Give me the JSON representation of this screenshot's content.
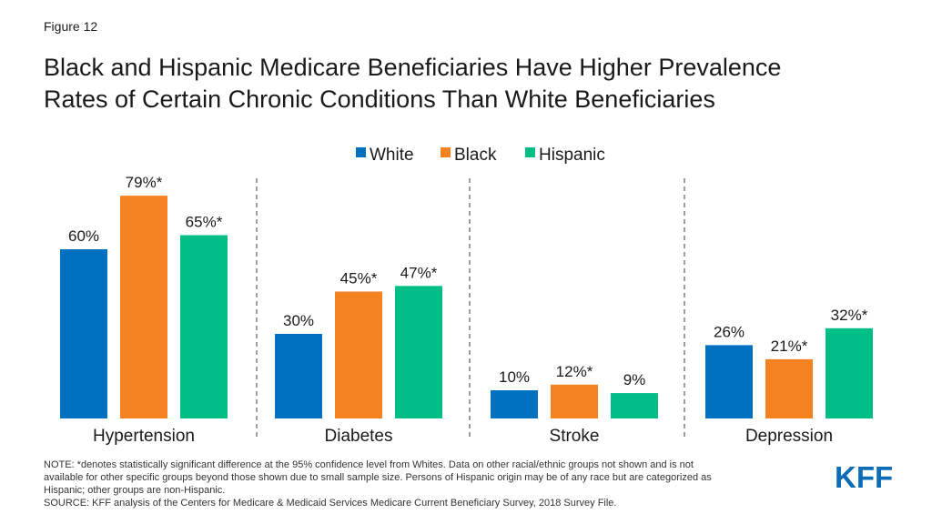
{
  "figure_label": "Figure 12",
  "title_lines": [
    "Black and Hispanic Medicare Beneficiaries Have Higher Prevalence",
    "Rates of Certain Chronic Conditions Than White Beneficiaries"
  ],
  "colors": {
    "White": "#0070c0",
    "Black": "#f58220",
    "Hispanic": "#00be85",
    "divider": "#7f7f7f",
    "logo": "#0d6cb6"
  },
  "chart_data": {
    "type": "bar",
    "categories": [
      "Hypertension",
      "Diabetes",
      "Stroke",
      "Depression"
    ],
    "legend_position": "top-center",
    "grid": false,
    "ylim": [
      0,
      85
    ],
    "series": [
      {
        "name": "White",
        "values": [
          60,
          30,
          10,
          26
        ],
        "labels": [
          "60%",
          "30%",
          "10%",
          "26%"
        ]
      },
      {
        "name": "Black",
        "values": [
          79,
          45,
          12,
          21
        ],
        "labels": [
          "79%*",
          "45%*",
          "12%*",
          "21%*"
        ]
      },
      {
        "name": "Hispanic",
        "values": [
          65,
          47,
          9,
          32
        ],
        "labels": [
          "65%*",
          "47%*",
          "9%",
          "32%*"
        ]
      }
    ]
  },
  "notes": [
    "NOTE: *denotes statistically significant difference at the 95% confidence level from Whites. Data on other racial/ethnic groups not shown and is not",
    "available for other specific groups beyond those shown due to small sample size. Persons of Hispanic origin may be of any race but are categorized as",
    "Hispanic; other groups are non-Hispanic.",
    "SOURCE: KFF analysis of the Centers for Medicare & Medicaid Services Medicare Current Beneficiary Survey, 2018 Survey File."
  ],
  "logo_text": "KFF"
}
